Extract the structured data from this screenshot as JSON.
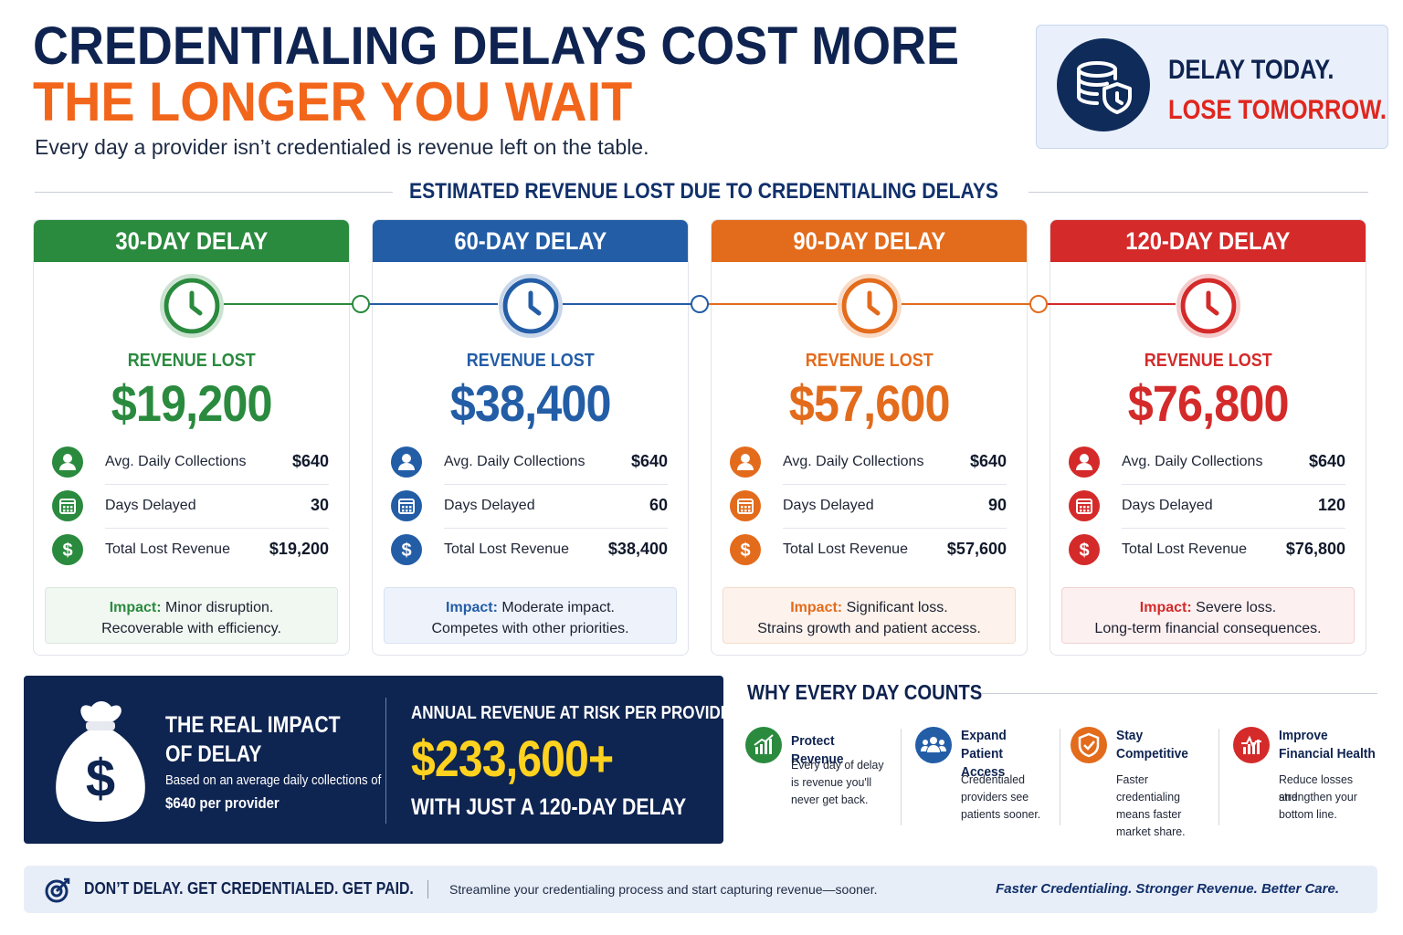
{
  "header": {
    "title_line1": "CREDENTIALING DELAYS COST MORE",
    "title_line2": "THE LONGER YOU WAIT",
    "subtitle": "Every day a provider isn’t credentialed is revenue left on the table."
  },
  "callout": {
    "icon": "database-shield-icon",
    "line1": "DELAY TODAY.",
    "line2": "LOSE TOMORROW."
  },
  "section_title": "ESTIMATED REVENUE LOST DUE TO CREDENTIALING DELAYS",
  "colors": {
    "green": "#2a8a3e",
    "blue": "#235da6",
    "orange": "#e36b1c",
    "red": "#d42a2a",
    "navy": "#0e2451",
    "gold": "#ffd21f"
  },
  "cards": [
    {
      "title": "30-DAY DELAY",
      "revenue_label": "REVENUE LOST",
      "amount": "$19,200",
      "rows": [
        {
          "label": "Avg. Daily Collections",
          "value": "$640"
        },
        {
          "label": "Days Delayed",
          "value": "30"
        },
        {
          "label": "Total Lost Revenue",
          "value": "$19,200"
        }
      ],
      "impact_label": "Impact:",
      "impact_text": " Minor disruption.",
      "impact_line2": "Recoverable with efficiency."
    },
    {
      "title": "60-DAY DELAY",
      "revenue_label": "REVENUE LOST",
      "amount": "$38,400",
      "rows": [
        {
          "label": "Avg. Daily Collections",
          "value": "$640"
        },
        {
          "label": "Days Delayed",
          "value": "60"
        },
        {
          "label": "Total Lost Revenue",
          "value": "$38,400"
        }
      ],
      "impact_label": "Impact:",
      "impact_text": " Moderate impact.",
      "impact_line2": "Competes with other priorities."
    },
    {
      "title": "90-DAY DELAY",
      "revenue_label": "REVENUE LOST",
      "amount": "$57,600",
      "rows": [
        {
          "label": "Avg. Daily Collections",
          "value": "$640"
        },
        {
          "label": "Days Delayed",
          "value": "90"
        },
        {
          "label": "Total Lost Revenue",
          "value": "$57,600"
        }
      ],
      "impact_label": "Impact:",
      "impact_text": " Significant loss.",
      "impact_line2": "Strains growth and patient access."
    },
    {
      "title": "120-DAY DELAY",
      "revenue_label": "REVENUE LOST",
      "amount": "$76,800",
      "rows": [
        {
          "label": "Avg. Daily Collections",
          "value": "$640"
        },
        {
          "label": "Days Delayed",
          "value": "120"
        },
        {
          "label": "Total Lost Revenue",
          "value": "$76,800"
        }
      ],
      "impact_label": "Impact:",
      "impact_text": " Severe loss.",
      "impact_line2": "Long-term financial consequences."
    }
  ],
  "impact_panel": {
    "title_line1": "THE REAL IMPACT",
    "title_line2": "OF DELAY",
    "note_line1": "Based on an average daily collections of",
    "note_line2": "$640 per provider",
    "annual_label": "ANNUAL REVENUE AT RISK PER PROVIDER",
    "annual_amount": "$233,600+",
    "annual_suffix": "WITH JUST A 120-DAY DELAY"
  },
  "why": {
    "title": "WHY EVERY DAY COUNTS",
    "items": [
      {
        "icon": "growth-chart-icon",
        "title": "Protect Revenue",
        "text": [
          "Every day of delay",
          "is revenue you'll",
          "never get back."
        ]
      },
      {
        "icon": "patients-group-icon",
        "title": "Expand Patient Access",
        "text": [
          "Credentialed",
          "providers see",
          "patients sooner."
        ]
      },
      {
        "icon": "shield-check-icon",
        "title": "Stay Competitive",
        "text": [
          "Faster",
          "credentialing",
          "means faster",
          "market share."
        ]
      },
      {
        "icon": "health-chart-icon",
        "title": "Improve Financial Health",
        "text": [
          "Reduce losses and",
          "strengthen your",
          "bottom line."
        ]
      }
    ]
  },
  "footer": {
    "cta": "DON’T DELAY. GET CREDENTIALED. GET PAID.",
    "text": "Streamline your credentialing process and start capturing revenue—sooner.",
    "tagline": "Faster Credentialing. Stronger Revenue. Better Care."
  }
}
